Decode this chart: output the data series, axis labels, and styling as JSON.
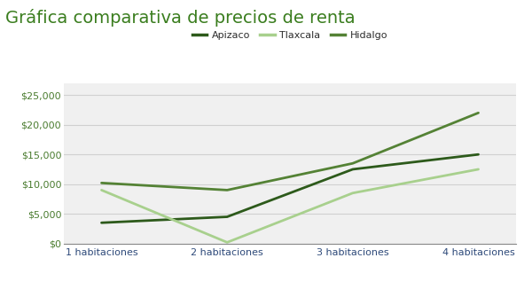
{
  "title": "Gráfica comparativa de precios de renta",
  "categories": [
    "1 habitaciones",
    "2 habitaciones",
    "3 habitaciones",
    "4 habitaciones"
  ],
  "series": [
    {
      "name": "Apizaco",
      "values": [
        3500,
        4500,
        12500,
        15000
      ],
      "color": "#2d5a1b",
      "linewidth": 2.0
    },
    {
      "name": "Tlaxcala",
      "values": [
        9000,
        200,
        8500,
        12500
      ],
      "color": "#a8d08d",
      "linewidth": 2.0
    },
    {
      "name": "Hidalgo",
      "values": [
        10200,
        9000,
        13500,
        22000
      ],
      "color": "#548235",
      "linewidth": 2.0
    }
  ],
  "ylim": [
    0,
    27000
  ],
  "yticks": [
    0,
    5000,
    10000,
    15000,
    20000,
    25000
  ],
  "background_color": "#ffffff",
  "plot_background_color": "#f0f0f0",
  "grid_color": "#d0d0d0",
  "title_color": "#3a7d1e",
  "title_fontsize": 14,
  "ytick_color": "#4a7c2f",
  "xtick_color": "#2e4a7a",
  "tick_fontsize": 8,
  "legend_fontsize": 8,
  "legend_label_color": "#2d2d2d"
}
